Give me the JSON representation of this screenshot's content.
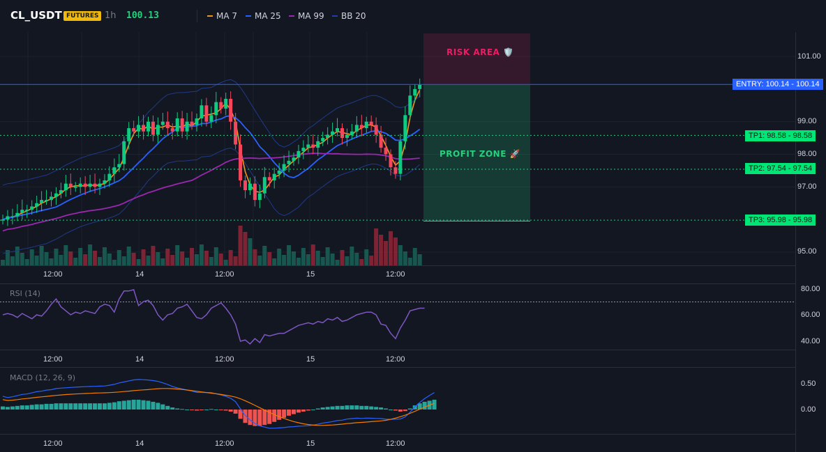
{
  "header": {
    "symbol": "CL_USDT",
    "market_badge": "FUTURES",
    "interval": "1h",
    "last_price": "100.13",
    "indicators": [
      {
        "label": "MA 7",
        "color": "#f7931a"
      },
      {
        "label": "MA 25",
        "color": "#2962ff"
      },
      {
        "label": "MA 99",
        "color": "#9c27b0"
      },
      {
        "label": "BB 20",
        "color": "#1e40af"
      }
    ]
  },
  "zones": {
    "risk_label": "RISK AREA 🛡️",
    "profit_label": "PROFIT ZONE 🚀"
  },
  "price_tags": {
    "entry": "ENTRY: 100.14 - 100.14",
    "tp1": "TP1: 98.58 - 98.58",
    "tp2": "TP2: 97.54 - 97.54",
    "tp3": "TP3: 95.98 - 95.98"
  },
  "levels": {
    "entry": 100.14,
    "tp1": 98.58,
    "tp2": 97.54,
    "tp3": 95.98
  },
  "price_axis": {
    "ticks": [
      "101.00",
      "99.00",
      "98.00",
      "97.00",
      "95.00"
    ],
    "values": [
      101,
      99,
      98,
      97,
      95
    ]
  },
  "time_axis": {
    "labels": [
      "12:00",
      "14",
      "12:00",
      "15",
      "12:00"
    ]
  },
  "rsi": {
    "title": "RSI (14)",
    "ticks": [
      "80.00",
      "60.00",
      "40.00"
    ],
    "tick_values": [
      80,
      60,
      40
    ],
    "overbought": 70,
    "color": "#7e57c2",
    "values": [
      60,
      61,
      60,
      58,
      61,
      59,
      57,
      60,
      59,
      63,
      68,
      72,
      66,
      63,
      60,
      62,
      61,
      63,
      62,
      61,
      66,
      68,
      67,
      62,
      72,
      78,
      78,
      79,
      67,
      70,
      71,
      67,
      60,
      56,
      60,
      61,
      65,
      66,
      68,
      63,
      58,
      57,
      60,
      65,
      67,
      69,
      65,
      60,
      53,
      40,
      41,
      38,
      42,
      39,
      45,
      44,
      45,
      46,
      46,
      48,
      50,
      52,
      53,
      54,
      53,
      55,
      54,
      57,
      56,
      58,
      55,
      56,
      58,
      60,
      61,
      62,
      62,
      60,
      53,
      52,
      46,
      42,
      50,
      56,
      63,
      64,
      65,
      65
    ]
  },
  "macd": {
    "title": "MACD (12, 26, 9)",
    "ticks": [
      "0.50",
      "0.00"
    ],
    "tick_values": [
      0.5,
      0.0
    ],
    "macd_color": "#2962ff",
    "signal_color": "#f57c00",
    "hist_up_color": "#26a69a",
    "hist_down_color": "#ef5350",
    "histogram": [
      0.06,
      0.05,
      0.06,
      0.07,
      0.08,
      0.08,
      0.09,
      0.1,
      0.1,
      0.11,
      0.11,
      0.12,
      0.12,
      0.12,
      0.12,
      0.12,
      0.12,
      0.12,
      0.12,
      0.12,
      0.12,
      0.12,
      0.13,
      0.14,
      0.16,
      0.17,
      0.18,
      0.19,
      0.19,
      0.18,
      0.17,
      0.15,
      0.13,
      0.1,
      0.07,
      0.04,
      0.02,
      0.01,
      0.0,
      -0.01,
      -0.02,
      -0.01,
      0.0,
      0.01,
      0.0,
      -0.01,
      -0.02,
      -0.04,
      -0.08,
      -0.18,
      -0.26,
      -0.3,
      -0.32,
      -0.32,
      -0.3,
      -0.28,
      -0.24,
      -0.2,
      -0.16,
      -0.12,
      -0.09,
      -0.06,
      -0.04,
      -0.02,
      0.0,
      0.02,
      0.04,
      0.05,
      0.06,
      0.07,
      0.07,
      0.08,
      0.08,
      0.08,
      0.07,
      0.07,
      0.06,
      0.05,
      0.04,
      0.02,
      0.0,
      -0.02,
      -0.04,
      -0.03,
      0.02,
      0.08,
      0.12,
      0.15,
      0.17,
      0.19
    ]
  }
}
